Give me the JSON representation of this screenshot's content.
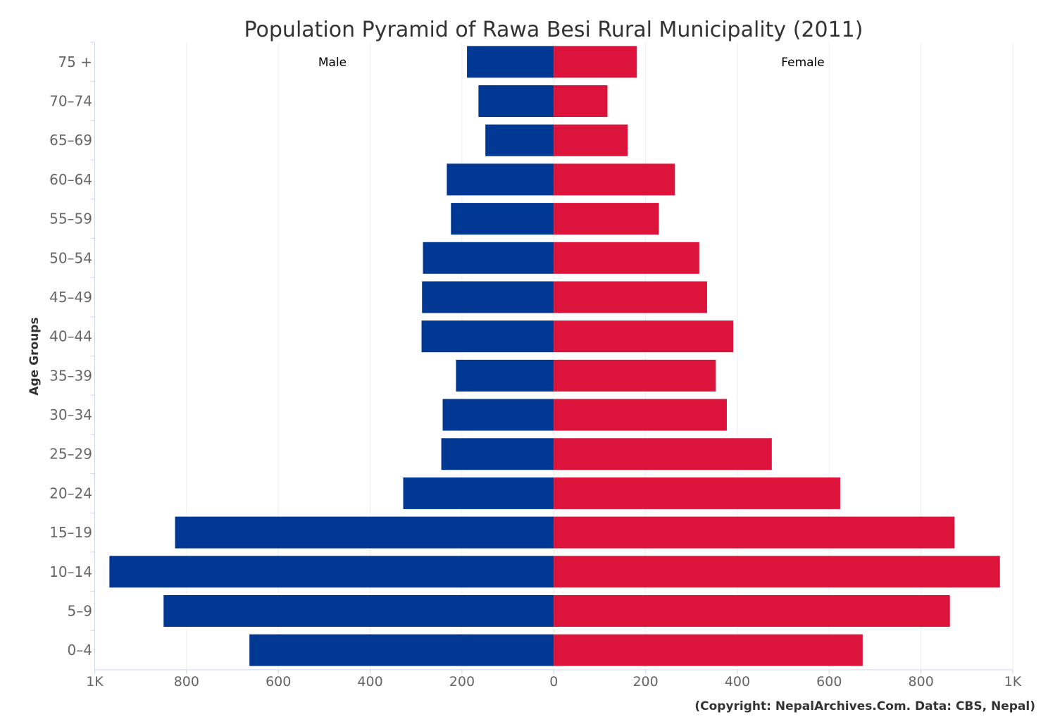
{
  "chart_data": {
    "type": "bar",
    "orientation": "horizontal",
    "subtype": "population-pyramid",
    "title": "Population Pyramid of Rawa Besi Rural Municipality (2011)",
    "ylabel": "Age Groups",
    "xlabel": "",
    "credit": "(Copyright: NepalArchives.Com. Data: CBS, Nepal)",
    "categories": [
      "75 +",
      "70-74",
      "65-69",
      "60-64",
      "55-59",
      "50-54",
      "45-49",
      "40-44",
      "35-39",
      "30-34",
      "25-29",
      "20-24",
      "15-19",
      "10-14",
      "5-9",
      "0-4"
    ],
    "series": [
      {
        "name": "Male",
        "color": "#003893",
        "values": [
          189,
          164,
          149,
          233,
          224,
          285,
          287,
          288,
          213,
          242,
          245,
          328,
          825,
          968,
          850,
          663
        ]
      },
      {
        "name": "Female",
        "color": "#DC143C",
        "values": [
          181,
          117,
          161,
          264,
          229,
          317,
          334,
          391,
          353,
          377,
          475,
          624,
          873,
          972,
          863,
          673
        ]
      }
    ],
    "xlim": [
      -1000,
      1000
    ],
    "xticks": [
      -1000,
      -800,
      -600,
      -400,
      -200,
      0,
      200,
      400,
      600,
      800,
      1000
    ],
    "xtick_labels": [
      "1K",
      "800",
      "600",
      "400",
      "200",
      "0",
      "200",
      "400",
      "600",
      "800",
      "1K"
    ],
    "grid": true,
    "legend": "series labels printed inside plot at top"
  }
}
